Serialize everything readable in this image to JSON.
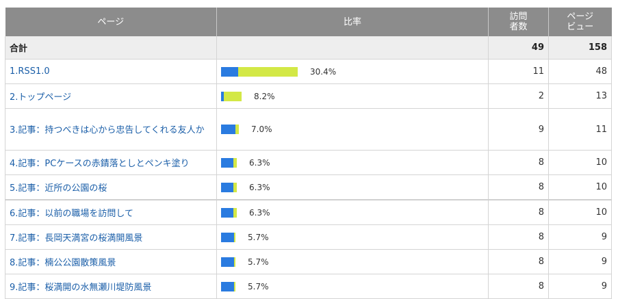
{
  "header": {
    "page": "ページ",
    "rate": "比率",
    "visitors": [
      "訪問",
      "者数"
    ],
    "pageviews": [
      "ページ",
      "ビュー"
    ]
  },
  "total": {
    "label": "合計",
    "visitors": "49",
    "pageviews": "158"
  },
  "rows": [
    {
      "label": "1.RSS1.0",
      "rate_percent": 30.4,
      "rate_text": "30.4%",
      "visitors": "11",
      "pageviews": "48",
      "share_visits": 0.22
    },
    {
      "label": "2.トップページ",
      "rate_percent": 8.2,
      "rate_text": "8.2%",
      "visitors": "2",
      "pageviews": "13",
      "share_visits": 0.12
    },
    {
      "label": "3.記事：持つべきは心から忠告してくれる友人か",
      "rate_percent": 7.0,
      "rate_text": "7.0%",
      "visitors": "9",
      "pageviews": "11",
      "share_visits": 0.82
    },
    {
      "label": "4.記事：PCケースの赤錆落としとペンキ塗り",
      "rate_percent": 6.3,
      "rate_text": "6.3%",
      "visitors": "8",
      "pageviews": "10",
      "share_visits": 0.8
    },
    {
      "label": "5.記事：近所の公園の桜",
      "rate_percent": 6.3,
      "rate_text": "6.3%",
      "visitors": "8",
      "pageviews": "10",
      "share_visits": 0.8
    },
    {
      "label": "6.記事：以前の職場を訪問して",
      "rate_percent": 6.3,
      "rate_text": "6.3%",
      "visitors": "8",
      "pageviews": "10",
      "share_visits": 0.8
    },
    {
      "label": "7.記事：長岡天満宮の桜満開風景",
      "rate_percent": 5.7,
      "rate_text": "5.7%",
      "visitors": "8",
      "pageviews": "9",
      "share_visits": 0.89
    },
    {
      "label": "8.記事：楠公公園散策風景",
      "rate_percent": 5.7,
      "rate_text": "5.7%",
      "visitors": "8",
      "pageviews": "9",
      "share_visits": 0.89
    },
    {
      "label": "9.記事：桜満開の水無瀬川堤防風景",
      "rate_percent": 5.7,
      "rate_text": "5.7%",
      "visitors": "8",
      "pageviews": "9",
      "share_visits": 0.89
    }
  ],
  "colors": {
    "header_bg": "#8c8c8c",
    "bar_visits": "#2a7be0",
    "bar_views": "#d3e846",
    "link": "#1a5ea8"
  }
}
